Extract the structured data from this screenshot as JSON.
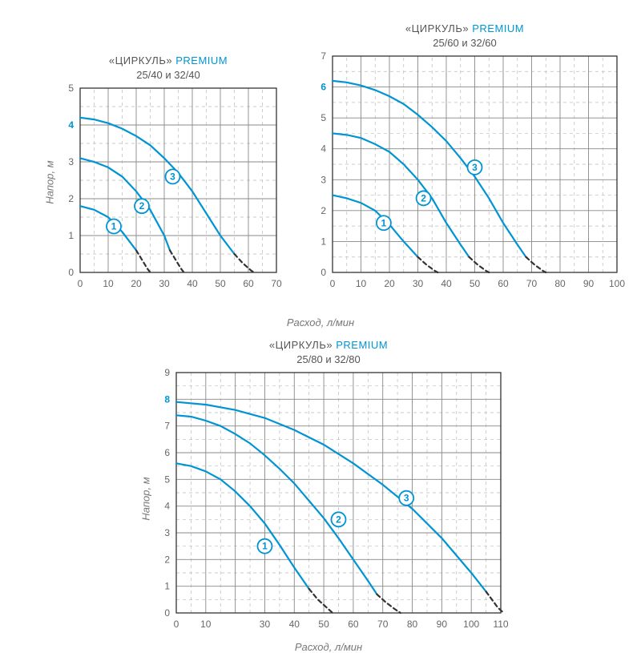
{
  "charts": {
    "c1": {
      "title_prefix": "«ЦИРКУЛЬ»",
      "title_suffix": "PREMIUM",
      "subtitle": "25/40 и 32/40",
      "ylabel": "Напор, м",
      "xlim": [
        0,
        70
      ],
      "xtick_step": 10,
      "ylim": [
        0,
        5
      ],
      "ytick_step": 1,
      "y_highlight_tick": 4,
      "grid_major_color": "#888888",
      "grid_minor_color": "#bbbbbb",
      "curve_color": "#0094d4",
      "dash_color": "#333333",
      "curve_width": 2.2,
      "dash_width": 2.2,
      "axis_color": "#333333",
      "tick_label_color": "#666666",
      "tick_label_fontsize": 12,
      "highlight_tick_color": "#0094d4",
      "marker_stroke": "#0094d4",
      "marker_text_color": "#0094d4",
      "marker_r": 9,
      "curves": [
        {
          "label": "1",
          "marker_at": [
            12,
            1.25
          ],
          "solid": [
            [
              0,
              1.8
            ],
            [
              5,
              1.7
            ],
            [
              10,
              1.5
            ],
            [
              15,
              1.1
            ],
            [
              18,
              0.8
            ],
            [
              20,
              0.6
            ]
          ],
          "dashed": [
            [
              20,
              0.6
            ],
            [
              22,
              0.35
            ],
            [
              24,
              0.1
            ],
            [
              25,
              0
            ]
          ]
        },
        {
          "label": "2",
          "marker_at": [
            22,
            1.8
          ],
          "solid": [
            [
              0,
              3.1
            ],
            [
              5,
              3.0
            ],
            [
              10,
              2.85
            ],
            [
              15,
              2.6
            ],
            [
              20,
              2.2
            ],
            [
              25,
              1.7
            ],
            [
              30,
              1.0
            ],
            [
              32,
              0.6
            ]
          ],
          "dashed": [
            [
              32,
              0.6
            ],
            [
              34,
              0.35
            ],
            [
              36,
              0.1
            ],
            [
              37,
              0
            ]
          ]
        },
        {
          "label": "3",
          "marker_at": [
            33,
            2.6
          ],
          "solid": [
            [
              0,
              4.2
            ],
            [
              5,
              4.15
            ],
            [
              10,
              4.05
            ],
            [
              15,
              3.9
            ],
            [
              20,
              3.7
            ],
            [
              25,
              3.45
            ],
            [
              30,
              3.1
            ],
            [
              35,
              2.7
            ],
            [
              40,
              2.2
            ],
            [
              45,
              1.6
            ],
            [
              50,
              1.0
            ],
            [
              55,
              0.5
            ]
          ],
          "dashed": [
            [
              55,
              0.5
            ],
            [
              58,
              0.25
            ],
            [
              61,
              0.05
            ],
            [
              62,
              0
            ]
          ]
        }
      ]
    },
    "c2": {
      "title_prefix": "«ЦИРКУЛЬ»",
      "title_suffix": "PREMIUM",
      "subtitle": "25/60 и 32/60",
      "xlim": [
        0,
        100
      ],
      "xtick_step": 10,
      "ylim": [
        0,
        7
      ],
      "ytick_step": 1,
      "y_highlight_tick": 6,
      "grid_major_color": "#888888",
      "grid_minor_color": "#bbbbbb",
      "curve_color": "#0094d4",
      "dash_color": "#333333",
      "curve_width": 2.2,
      "dash_width": 2.2,
      "axis_color": "#333333",
      "tick_label_color": "#666666",
      "tick_label_fontsize": 12,
      "highlight_tick_color": "#0094d4",
      "marker_stroke": "#0094d4",
      "marker_text_color": "#0094d4",
      "marker_r": 9,
      "curves": [
        {
          "label": "1",
          "marker_at": [
            18,
            1.6
          ],
          "solid": [
            [
              0,
              2.5
            ],
            [
              5,
              2.4
            ],
            [
              10,
              2.25
            ],
            [
              15,
              2.0
            ],
            [
              20,
              1.55
            ],
            [
              25,
              1.0
            ],
            [
              30,
              0.5
            ]
          ],
          "dashed": [
            [
              30,
              0.5
            ],
            [
              33,
              0.25
            ],
            [
              36,
              0.05
            ],
            [
              37,
              0
            ]
          ]
        },
        {
          "label": "2",
          "marker_at": [
            32,
            2.4
          ],
          "solid": [
            [
              0,
              4.5
            ],
            [
              5,
              4.45
            ],
            [
              10,
              4.35
            ],
            [
              15,
              4.15
            ],
            [
              20,
              3.9
            ],
            [
              25,
              3.5
            ],
            [
              30,
              3.0
            ],
            [
              35,
              2.4
            ],
            [
              40,
              1.6
            ],
            [
              45,
              0.9
            ],
            [
              48,
              0.5
            ]
          ],
          "dashed": [
            [
              48,
              0.5
            ],
            [
              51,
              0.25
            ],
            [
              54,
              0.05
            ],
            [
              55,
              0
            ]
          ]
        },
        {
          "label": "3",
          "marker_at": [
            50,
            3.4
          ],
          "solid": [
            [
              0,
              6.2
            ],
            [
              5,
              6.15
            ],
            [
              10,
              6.05
            ],
            [
              15,
              5.9
            ],
            [
              20,
              5.7
            ],
            [
              25,
              5.45
            ],
            [
              30,
              5.1
            ],
            [
              35,
              4.7
            ],
            [
              40,
              4.25
            ],
            [
              45,
              3.7
            ],
            [
              50,
              3.1
            ],
            [
              55,
              2.4
            ],
            [
              60,
              1.6
            ],
            [
              65,
              0.9
            ],
            [
              68,
              0.5
            ]
          ],
          "dashed": [
            [
              68,
              0.5
            ],
            [
              71,
              0.25
            ],
            [
              74,
              0.05
            ],
            [
              75,
              0
            ]
          ]
        }
      ]
    },
    "c3": {
      "title_prefix": "«ЦИРКУЛЬ»",
      "title_suffix": "PREMIUM",
      "subtitle": "25/80 и 32/80",
      "ylabel": "Напор, м",
      "xlabel": "Расход, л/мин",
      "xlim": [
        0,
        110
      ],
      "xtick_step": 10,
      "x_skip_tick_label": [
        20
      ],
      "ylim": [
        0,
        9
      ],
      "ytick_step": 1,
      "y_highlight_tick": 8,
      "grid_major_color": "#888888",
      "grid_minor_color": "#bbbbbb",
      "curve_color": "#0094d4",
      "dash_color": "#333333",
      "curve_width": 2.2,
      "dash_width": 2.2,
      "axis_color": "#333333",
      "tick_label_color": "#666666",
      "tick_label_fontsize": 12,
      "highlight_tick_color": "#0094d4",
      "marker_stroke": "#0094d4",
      "marker_text_color": "#0094d4",
      "marker_r": 9,
      "curves": [
        {
          "label": "1",
          "marker_at": [
            30,
            2.5
          ],
          "solid": [
            [
              0,
              5.6
            ],
            [
              5,
              5.5
            ],
            [
              10,
              5.3
            ],
            [
              15,
              5.0
            ],
            [
              20,
              4.55
            ],
            [
              25,
              4.0
            ],
            [
              30,
              3.35
            ],
            [
              35,
              2.55
            ],
            [
              40,
              1.7
            ],
            [
              45,
              0.9
            ]
          ],
          "dashed": [
            [
              45,
              0.9
            ],
            [
              48,
              0.5
            ],
            [
              51,
              0.2
            ],
            [
              53,
              0
            ]
          ]
        },
        {
          "label": "2",
          "marker_at": [
            55,
            3.5
          ],
          "solid": [
            [
              0,
              7.4
            ],
            [
              5,
              7.35
            ],
            [
              10,
              7.2
            ],
            [
              15,
              7.0
            ],
            [
              20,
              6.7
            ],
            [
              25,
              6.35
            ],
            [
              30,
              5.9
            ],
            [
              35,
              5.4
            ],
            [
              40,
              4.85
            ],
            [
              45,
              4.2
            ],
            [
              50,
              3.55
            ],
            [
              55,
              2.8
            ],
            [
              60,
              2.0
            ],
            [
              65,
              1.2
            ],
            [
              68,
              0.7
            ]
          ],
          "dashed": [
            [
              68,
              0.7
            ],
            [
              71,
              0.4
            ],
            [
              74,
              0.15
            ],
            [
              76,
              0
            ]
          ]
        },
        {
          "label": "3",
          "marker_at": [
            78,
            4.3
          ],
          "solid": [
            [
              0,
              7.9
            ],
            [
              10,
              7.8
            ],
            [
              20,
              7.6
            ],
            [
              30,
              7.3
            ],
            [
              40,
              6.85
            ],
            [
              50,
              6.3
            ],
            [
              60,
              5.6
            ],
            [
              70,
              4.8
            ],
            [
              80,
              3.9
            ],
            [
              90,
              2.8
            ],
            [
              100,
              1.5
            ],
            [
              105,
              0.8
            ]
          ],
          "dashed": [
            [
              105,
              0.8
            ],
            [
              107,
              0.5
            ],
            [
              109,
              0.2
            ],
            [
              111,
              0
            ]
          ]
        }
      ]
    }
  },
  "shared_xlabel_top": "Расход, л/мин"
}
